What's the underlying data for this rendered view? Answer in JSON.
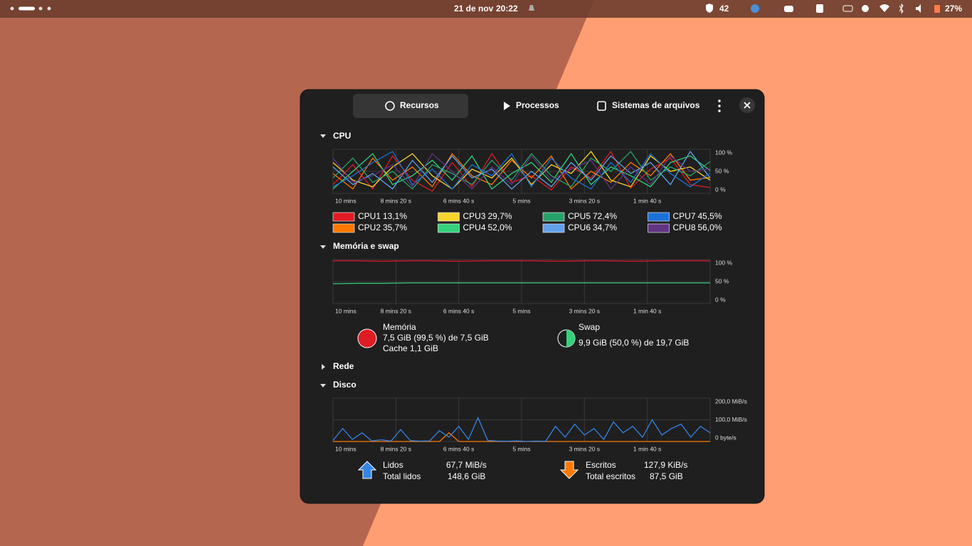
{
  "top_bar": {
    "date": "21 de nov",
    "time": "20:22",
    "notifications": "42",
    "battery": "27%"
  },
  "tabs": [
    "Recursos",
    "Processos",
    "Sistemas de arquivos"
  ],
  "cpu": {
    "title": "CPU",
    "graph": {
      "x_labels": [
        "10 mins",
        "8 mins 20 s",
        "6 mins 40 s",
        "5 mins",
        "3 mins 20 s",
        "1 min 40 s"
      ],
      "ylim": [
        0,
        100
      ],
      "yticks": [
        {
          "value": 0,
          "label": "0 %"
        },
        {
          "value": 50,
          "label": "50 %"
        },
        {
          "value": 100,
          "label": "100 %"
        }
      ]
    },
    "legend": [
      {
        "name": "CPU1",
        "value": "13,1%",
        "color": "#e01b24",
        "history": [
          20,
          65,
          10,
          85,
          30,
          5,
          70,
          15,
          90,
          25,
          40,
          8,
          60,
          35,
          95,
          12,
          55,
          80,
          20,
          13
        ]
      },
      {
        "name": "CPU2",
        "value": "35,7%",
        "color": "#ff7800",
        "history": [
          45,
          10,
          80,
          30,
          60,
          15,
          90,
          40,
          20,
          75,
          35,
          85,
          10,
          50,
          25,
          70,
          40,
          90,
          30,
          36
        ]
      },
      {
        "name": "CPU3",
        "value": "29,7%",
        "color": "#f6d32d",
        "history": [
          70,
          30,
          15,
          60,
          90,
          40,
          10,
          55,
          35,
          80,
          20,
          65,
          45,
          95,
          30,
          15,
          85,
          50,
          60,
          30
        ]
      },
      {
        "name": "CPU4",
        "value": "52,0%",
        "color": "#33d17a",
        "history": [
          10,
          50,
          90,
          20,
          40,
          75,
          30,
          85,
          10,
          45,
          70,
          25,
          90,
          20,
          60,
          40,
          15,
          70,
          85,
          52
        ]
      },
      {
        "name": "CPU5",
        "value": "72,4%",
        "color": "#26a269",
        "history": [
          35,
          80,
          25,
          50,
          10,
          65,
          45,
          20,
          75,
          30,
          90,
          40,
          15,
          80,
          50,
          95,
          30,
          60,
          40,
          72
        ]
      },
      {
        "name": "CPU6",
        "value": "34,7%",
        "color": "#62a0ea",
        "history": [
          60,
          20,
          45,
          10,
          75,
          25,
          85,
          35,
          55,
          10,
          50,
          15,
          70,
          30,
          85,
          45,
          70,
          20,
          95,
          35
        ]
      },
      {
        "name": "CPU7",
        "value": "45,5%",
        "color": "#1c71d8",
        "history": [
          15,
          40,
          70,
          95,
          20,
          55,
          10,
          65,
          40,
          90,
          15,
          80,
          35,
          10,
          70,
          25,
          90,
          45,
          15,
          46
        ]
      },
      {
        "name": "CPU8",
        "value": "56,0%",
        "color": "#613583",
        "history": [
          80,
          25,
          40,
          65,
          15,
          90,
          50,
          10,
          60,
          20,
          85,
          30,
          55,
          75,
          10,
          60,
          20,
          85,
          50,
          56
        ]
      }
    ]
  },
  "memory": {
    "title": "Memória e swap",
    "graph": {
      "x_labels": [
        "10 mins",
        "8 mins 20 s",
        "6 mins 40 s",
        "5 mins",
        "3 mins 20 s",
        "1 min 40 s"
      ],
      "ylim": [
        0,
        100
      ],
      "yticks": [
        {
          "value": 0,
          "label": "0 %"
        },
        {
          "value": 50,
          "label": "50 %"
        },
        {
          "value": 100,
          "label": "100 %"
        }
      ]
    },
    "memory": {
      "label": "Memória",
      "usage": "7,5 GiB (99,5 %) de 7,5 GiB",
      "cache": "Cache 1,1 GiB",
      "color": "#e01b24",
      "history": [
        97,
        97,
        96,
        97,
        97,
        96,
        97,
        97,
        97,
        96,
        97,
        97,
        96,
        97,
        97,
        97
      ]
    },
    "swap": {
      "label": "Swap",
      "usage": "9,9 GiB (50,0 %) de 19,7 GiB",
      "color": "#33d17a",
      "history": [
        45,
        46,
        46,
        47,
        47,
        47,
        47,
        47,
        47,
        47,
        47,
        47,
        47,
        47,
        47,
        47
      ]
    }
  },
  "network": {
    "title": "Rede"
  },
  "disk": {
    "title": "Disco",
    "graph": {
      "x_labels": [
        "10 mins",
        "8 mins 20 s",
        "6 mins 40 s",
        "5 mins",
        "3 mins 20 s",
        "1 min 40 s"
      ],
      "ylim": [
        0,
        200
      ],
      "yticks": [
        {
          "value": 0,
          "label": "0 byte/s"
        },
        {
          "value": 100,
          "label": "100,0 MiB/s"
        },
        {
          "value": 200,
          "label": "200,0 MiB/s"
        }
      ]
    },
    "read": {
      "label": "Lidos",
      "rate": "67,7 MiB/s",
      "total_label": "Total lidos",
      "total": "148,6 GiB",
      "color": "#3584e4",
      "history": [
        5,
        60,
        10,
        40,
        3,
        8,
        2,
        55,
        4,
        2,
        3,
        50,
        20,
        70,
        10,
        110,
        5,
        2,
        1,
        3,
        0,
        2,
        1,
        70,
        20,
        80,
        30,
        60,
        10,
        90,
        40,
        70,
        20,
        100,
        30,
        60,
        80,
        20,
        70,
        40
      ]
    },
    "write": {
      "label": "Escritos",
      "rate": "127,9 KiB/s",
      "total_label": "Total escritos",
      "total": "87,5 GiB",
      "color": "#ff7800",
      "history": [
        0,
        0,
        0,
        0,
        0,
        0,
        0,
        0,
        0,
        0,
        0,
        0,
        40,
        0,
        0,
        0,
        0,
        0,
        0,
        0,
        0,
        0,
        0,
        0,
        0,
        0,
        0,
        0,
        0,
        0,
        0,
        0,
        0,
        0,
        0,
        0,
        0,
        0,
        0,
        0
      ]
    }
  }
}
